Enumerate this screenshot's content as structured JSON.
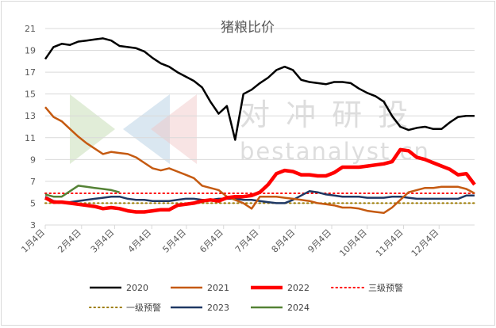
{
  "chart_data": {
    "type": "line",
    "title": "猪粮比价",
    "watermark": {
      "cn": "对 冲 研 投",
      "en": "bestanalyst.cn"
    },
    "xlabel": "",
    "ylabel": "",
    "ylim": [
      3,
      21
    ],
    "yticks": [
      3,
      5,
      7,
      9,
      11,
      13,
      15,
      17,
      19,
      21
    ],
    "x_domain": [
      1,
      53
    ],
    "xticks": [
      {
        "label": "1月4日",
        "week": 1
      },
      {
        "label": "2月4日",
        "week": 5.4
      },
      {
        "label": "3月4日",
        "week": 9.4
      },
      {
        "label": "4月4日",
        "week": 13.9
      },
      {
        "label": "5月4日",
        "week": 18.1
      },
      {
        "label": "6月4日",
        "week": 22.6
      },
      {
        "label": "7月4日",
        "week": 26.9
      },
      {
        "label": "8月4日",
        "week": 31.3
      },
      {
        "label": "9月4日",
        "week": 35.7
      },
      {
        "label": "10月4日",
        "week": 40.0
      },
      {
        "label": "11月4日",
        "week": 44.4
      },
      {
        "label": "12月4日",
        "week": 48.7
      }
    ],
    "grid": true,
    "legend_position": "bottom",
    "colors": {
      "grid": "#d9d9d9",
      "axis_text": "#595959",
      "title": "#595959"
    },
    "series": [
      {
        "name": "2020",
        "color": "#000000",
        "width": 2.5,
        "dash": "",
        "x": [
          1,
          2,
          3,
          4,
          5,
          6,
          7,
          8,
          9,
          10,
          11,
          12,
          13,
          14,
          15,
          16,
          17,
          18,
          19,
          20,
          21,
          22,
          23,
          24,
          25,
          26,
          27,
          28,
          29,
          30,
          31,
          32,
          33,
          34,
          35,
          36,
          37,
          38,
          39,
          40,
          41,
          42,
          43,
          44,
          45,
          46,
          47,
          48,
          49,
          50,
          51,
          52,
          53
        ],
        "values": [
          18.2,
          19.3,
          19.6,
          19.5,
          19.8,
          19.9,
          20.0,
          20.1,
          19.9,
          19.4,
          19.3,
          19.2,
          18.9,
          18.3,
          17.8,
          17.5,
          17.0,
          16.6,
          16.2,
          15.6,
          14.3,
          13.2,
          13.9,
          10.8,
          15.0,
          15.4,
          16.0,
          16.5,
          17.2,
          17.5,
          17.2,
          16.3,
          16.1,
          16.0,
          15.9,
          16.1,
          16.1,
          16.0,
          15.5,
          15.1,
          14.8,
          14.3,
          13.0,
          12.0,
          11.7,
          11.9,
          12.0,
          11.8,
          11.8,
          12.4,
          12.9,
          13.0,
          13.0
        ]
      },
      {
        "name": "2021",
        "color": "#c55a11",
        "width": 2.5,
        "dash": "",
        "x": [
          1,
          2,
          3,
          4,
          5,
          6,
          7,
          8,
          9,
          10,
          11,
          12,
          13,
          14,
          15,
          16,
          17,
          18,
          19,
          20,
          21,
          22,
          23,
          24,
          25,
          26,
          27,
          28,
          29,
          30,
          31,
          32,
          33,
          34,
          35,
          36,
          37,
          38,
          39,
          40,
          41,
          42,
          43,
          44,
          45,
          46,
          47,
          48,
          49,
          50,
          51,
          52,
          53
        ],
        "values": [
          13.8,
          12.9,
          12.5,
          11.8,
          11.1,
          10.5,
          10.0,
          9.5,
          9.7,
          9.6,
          9.5,
          9.2,
          8.7,
          8.2,
          8.0,
          8.2,
          7.9,
          7.6,
          7.3,
          6.6,
          6.4,
          6.2,
          5.6,
          5.3,
          5.0,
          4.5,
          5.6,
          5.6,
          5.6,
          5.5,
          5.4,
          5.3,
          5.2,
          5.0,
          4.9,
          4.8,
          4.6,
          4.6,
          4.5,
          4.3,
          4.2,
          4.1,
          4.6,
          5.3,
          6.0,
          6.2,
          6.4,
          6.4,
          6.5,
          6.5,
          6.5,
          6.3,
          5.9
        ]
      },
      {
        "name": "2022",
        "color": "#ff0000",
        "width": 4.5,
        "dash": "",
        "x": [
          1,
          2,
          3,
          4,
          5,
          6,
          7,
          8,
          9,
          10,
          11,
          12,
          13,
          14,
          15,
          16,
          17,
          18,
          19,
          20,
          21,
          22,
          23,
          24,
          25,
          26,
          27,
          28,
          29,
          30,
          31,
          32,
          33,
          34,
          35,
          36,
          37,
          38,
          39,
          40,
          41,
          42,
          43,
          44,
          45,
          46,
          47,
          48,
          49,
          50,
          51,
          52,
          53
        ],
        "values": [
          5.5,
          5.1,
          5.1,
          5.0,
          4.9,
          4.8,
          4.7,
          4.5,
          4.6,
          4.5,
          4.3,
          4.2,
          4.2,
          4.3,
          4.4,
          4.4,
          4.8,
          4.9,
          5.0,
          5.2,
          5.3,
          5.2,
          5.5,
          5.6,
          5.6,
          5.7,
          6.0,
          6.7,
          7.7,
          8.0,
          7.9,
          7.6,
          7.6,
          7.5,
          7.5,
          7.8,
          8.3,
          8.3,
          8.3,
          8.4,
          8.5,
          8.6,
          8.8,
          9.9,
          9.8,
          9.2,
          9.0,
          8.7,
          8.4,
          8.1,
          7.6,
          7.7,
          6.7
        ]
      },
      {
        "name": "三级预警",
        "color": "#ff0000",
        "width": 2,
        "dash": "1.5 4",
        "round": true,
        "x": [
          1,
          53
        ],
        "values": [
          5.9,
          5.9
        ]
      },
      {
        "name": "一级预警",
        "color": "#9c7b00",
        "width": 2,
        "dash": "1.5 4",
        "round": true,
        "x": [
          1,
          53
        ],
        "values": [
          5.0,
          5.0
        ]
      },
      {
        "name": "2023",
        "color": "#1f3864",
        "width": 2.5,
        "dash": "",
        "x": [
          1,
          2,
          3,
          4,
          5,
          6,
          7,
          8,
          9,
          10,
          11,
          12,
          13,
          14,
          15,
          16,
          17,
          18,
          19,
          20,
          21,
          22,
          23,
          24,
          25,
          26,
          27,
          28,
          29,
          30,
          31,
          32,
          33,
          34,
          35,
          36,
          37,
          38,
          39,
          40,
          41,
          42,
          43,
          44,
          45,
          46,
          47,
          48,
          49,
          50,
          51,
          52,
          53
        ],
        "values": [
          5.6,
          5.2,
          5.1,
          5.1,
          5.2,
          5.3,
          5.4,
          5.5,
          5.6,
          5.6,
          5.4,
          5.3,
          5.3,
          5.2,
          5.2,
          5.2,
          5.3,
          5.4,
          5.4,
          5.3,
          5.3,
          5.4,
          5.4,
          5.4,
          5.3,
          5.3,
          5.2,
          5.1,
          5.0,
          5.0,
          5.3,
          5.7,
          6.1,
          6.0,
          5.8,
          5.7,
          5.6,
          5.6,
          5.6,
          5.5,
          5.5,
          5.5,
          5.6,
          5.6,
          5.5,
          5.4,
          5.4,
          5.4,
          5.4,
          5.4,
          5.4,
          5.7,
          5.7
        ]
      },
      {
        "name": "2024",
        "color": "#548235",
        "width": 2.5,
        "dash": "",
        "x": [
          1,
          2,
          3,
          4,
          5,
          6,
          7,
          8,
          9,
          10
        ],
        "values": [
          5.8,
          5.6,
          5.6,
          6.1,
          6.6,
          6.5,
          6.4,
          6.3,
          6.2,
          6.0
        ]
      }
    ]
  }
}
